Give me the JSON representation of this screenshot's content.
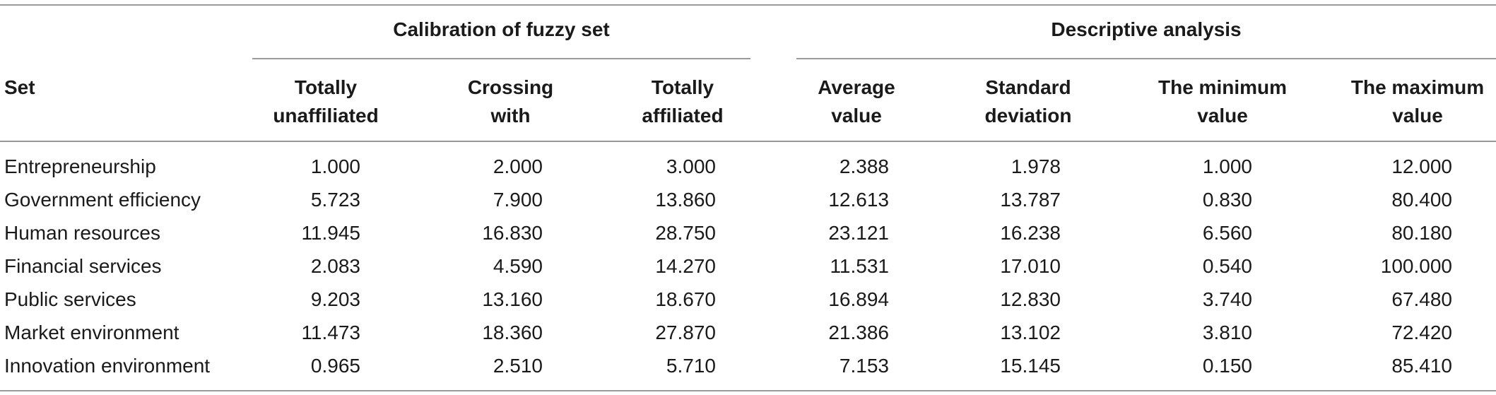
{
  "group_headers": {
    "calibration": "Calibration of fuzzy set",
    "descriptive": "Descriptive analysis"
  },
  "set_header": "Set",
  "columns": [
    [
      "Totally",
      "unaffiliated"
    ],
    [
      "Crossing",
      "with"
    ],
    [
      "Totally",
      "affiliated"
    ],
    [
      "Average",
      "value"
    ],
    [
      "Standard",
      "deviation"
    ],
    [
      "The minimum",
      "value"
    ],
    [
      "The maximum",
      "value"
    ]
  ],
  "rows": [
    {
      "name": "Entrepreneurship",
      "values": [
        "1.000",
        "2.000",
        "3.000",
        "2.388",
        "1.978",
        "1.000",
        "12.000"
      ]
    },
    {
      "name": "Government efficiency",
      "values": [
        "5.723",
        "7.900",
        "13.860",
        "12.613",
        "13.787",
        "0.830",
        "80.400"
      ]
    },
    {
      "name": "Human resources",
      "values": [
        "11.945",
        "16.830",
        "28.750",
        "23.121",
        "16.238",
        "6.560",
        "80.180"
      ]
    },
    {
      "name": "Financial services",
      "values": [
        "2.083",
        "4.590",
        "14.270",
        "11.531",
        "17.010",
        "0.540",
        "100.000"
      ]
    },
    {
      "name": "Public services",
      "values": [
        "9.203",
        "13.160",
        "18.670",
        "16.894",
        "12.830",
        "3.740",
        "67.480"
      ]
    },
    {
      "name": "Market environment",
      "values": [
        "11.473",
        "18.360",
        "27.870",
        "21.386",
        "13.102",
        "3.810",
        "72.420"
      ]
    },
    {
      "name": "Innovation environment",
      "values": [
        "0.965",
        "2.510",
        "5.710",
        "7.153",
        "15.145",
        "0.150",
        "85.410"
      ]
    }
  ]
}
